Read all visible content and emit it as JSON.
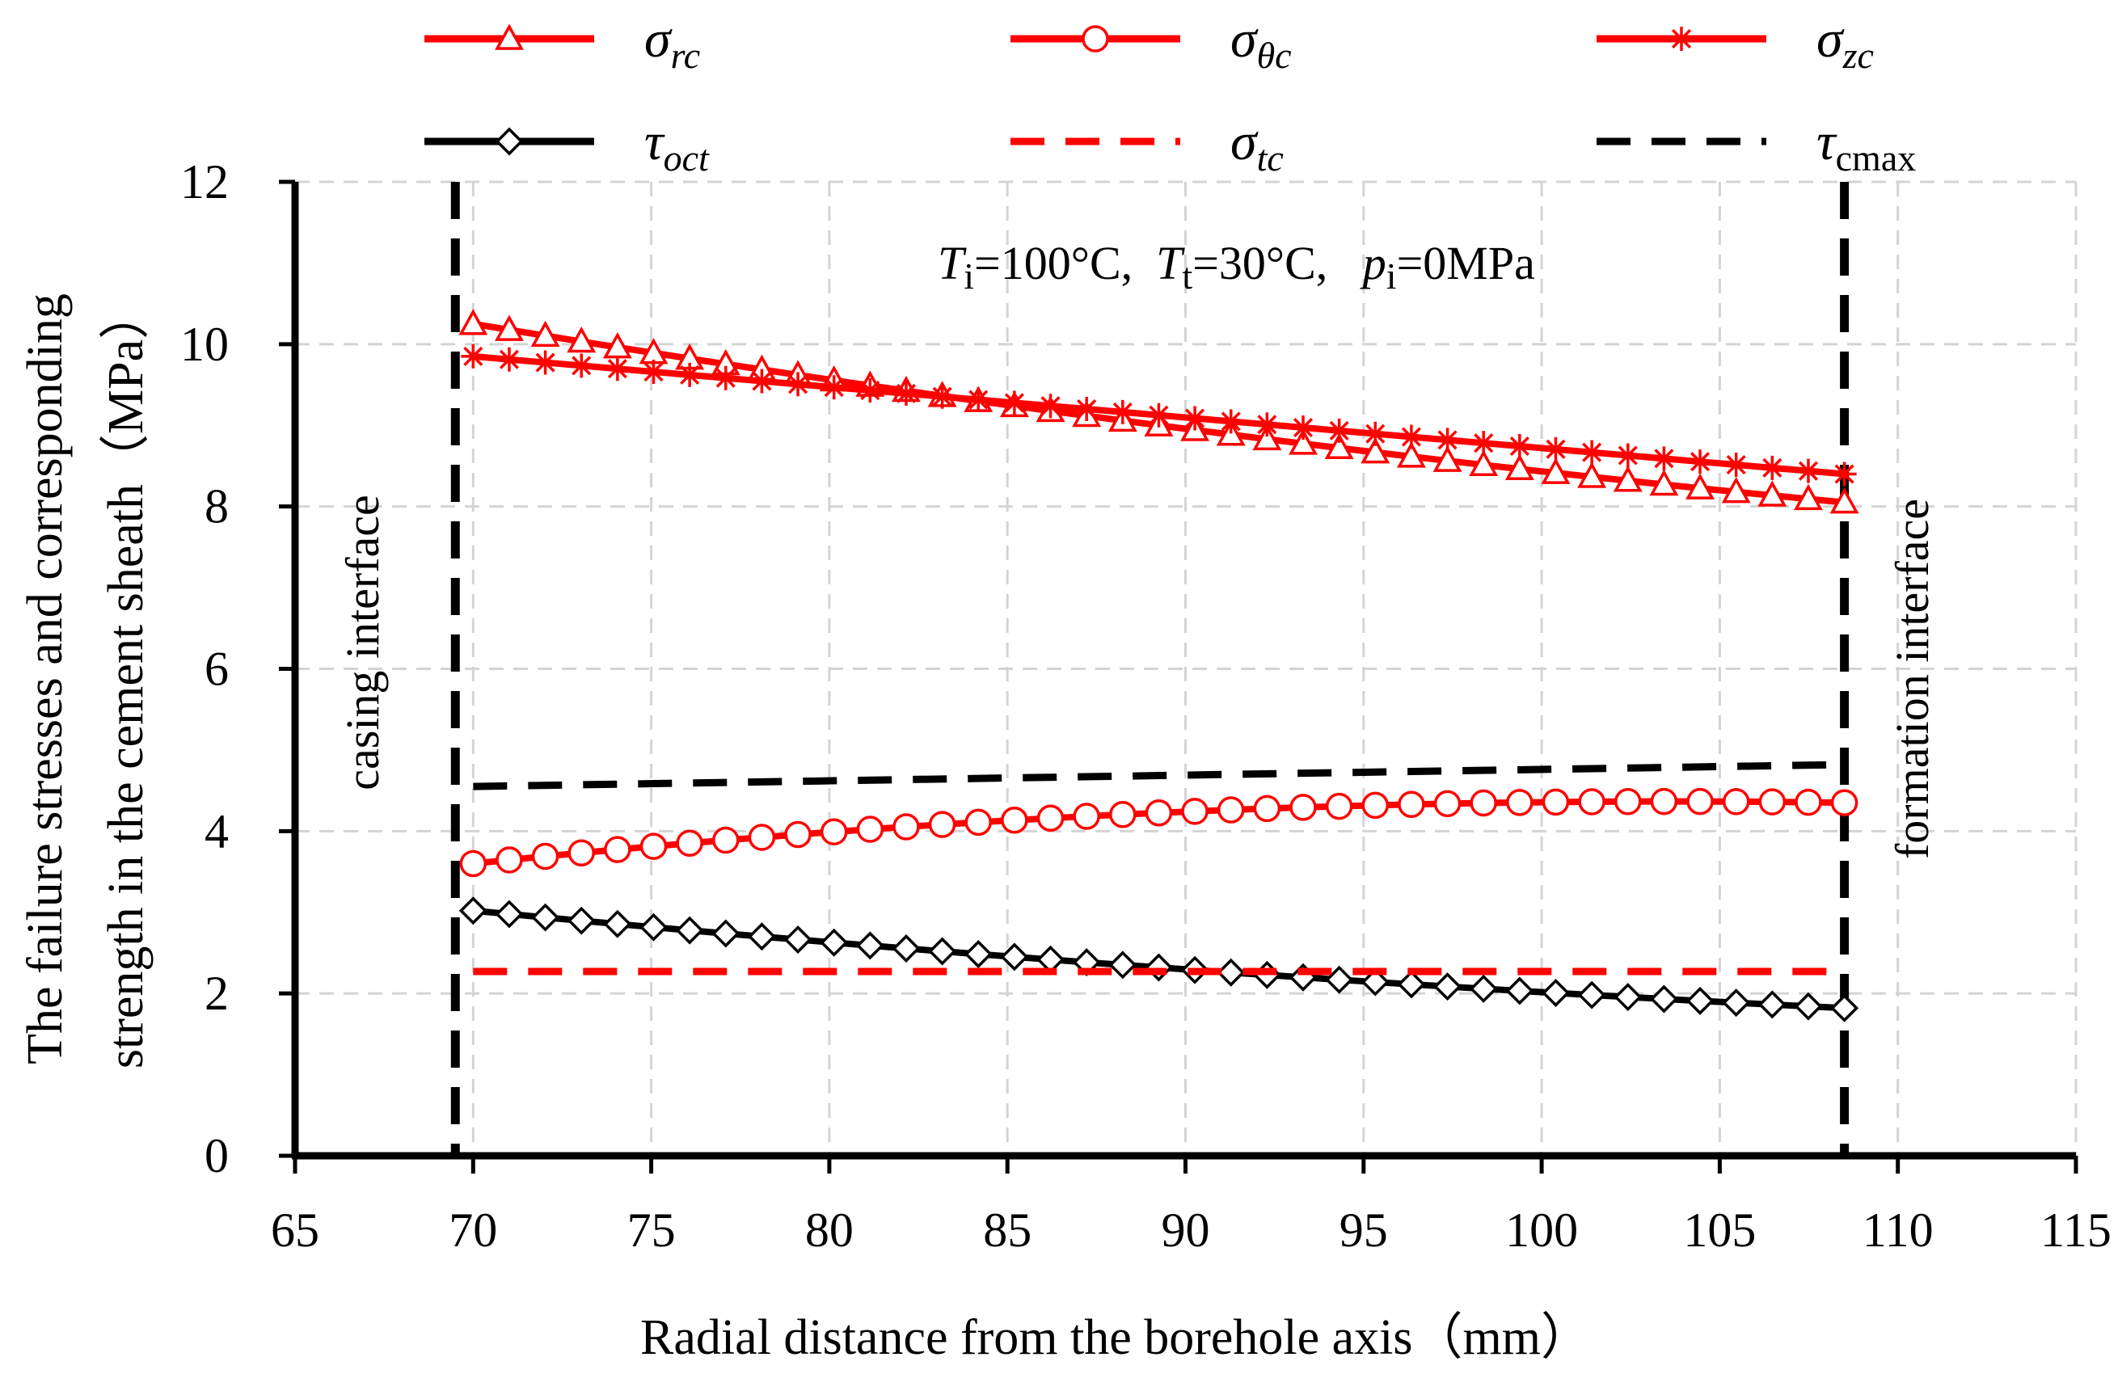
{
  "chart_data": {
    "type": "line",
    "xlabel": "Radial distance from  the borehole axis（mm）",
    "ylabel_line1": "The failure stresses and corresponding",
    "ylabel_line2": "strength in the cement sheath（MPa）",
    "xlim": [
      65,
      115
    ],
    "ylim": [
      0,
      12
    ],
    "xticks": [
      65,
      70,
      75,
      80,
      85,
      90,
      95,
      100,
      105,
      110,
      115
    ],
    "yticks": [
      0,
      2,
      4,
      6,
      8,
      10,
      12
    ],
    "grid": true,
    "legend_position": "top",
    "conditions": {
      "t_i_sym": "T",
      "t_i_sub": "i",
      "t_i_val": "=100°C,",
      "t_t_sym": "T",
      "t_t_sub": "t",
      "t_t_val": "=30°C,",
      "p_i_sym": "p",
      "p_i_sub": "i",
      "p_i_val": "=0MPa"
    },
    "interfaces": [
      {
        "label": "casing  interface",
        "x": 69.5
      },
      {
        "label": "formation  interface",
        "x": 108.5
      }
    ],
    "x_range": [
      70,
      108.5
    ],
    "n_points": 39,
    "series": [
      {
        "name": "σ_rc",
        "sym": "σ",
        "sub": "rc",
        "color": "#ff0000",
        "dashed": false,
        "marker": "triangle",
        "start": 10.25,
        "end": 8.05,
        "curve": 0.15
      },
      {
        "name": "σ_θc",
        "sym": "σ",
        "sub": "θc",
        "color": "#ff0000",
        "dashed": false,
        "marker": "circle",
        "start": 3.6,
        "end": 4.35,
        "curve": -0.25
      },
      {
        "name": "σ_zc",
        "sym": "σ",
        "sub": "zc",
        "color": "#ff0000",
        "dashed": false,
        "marker": "star",
        "start": 9.85,
        "end": 8.4,
        "curve": 0.0
      },
      {
        "name": "τ_oct",
        "sym": "τ",
        "sub": "oct",
        "color": "#000000",
        "dashed": false,
        "marker": "diamond",
        "start": 3.02,
        "end": 1.82,
        "curve": 0.1
      },
      {
        "name": "σ_tc",
        "sym": "σ",
        "sub": "tc",
        "color": "#ff0000",
        "dashed": true,
        "marker": "none",
        "start": 2.27,
        "end": 2.27,
        "curve": 0.0
      },
      {
        "name": "τ_cmax",
        "sym": "τ",
        "sub": "cmax",
        "color": "#000000",
        "dashed": true,
        "marker": "none",
        "start": 4.55,
        "end": 4.82,
        "curve": 0.0
      }
    ]
  }
}
